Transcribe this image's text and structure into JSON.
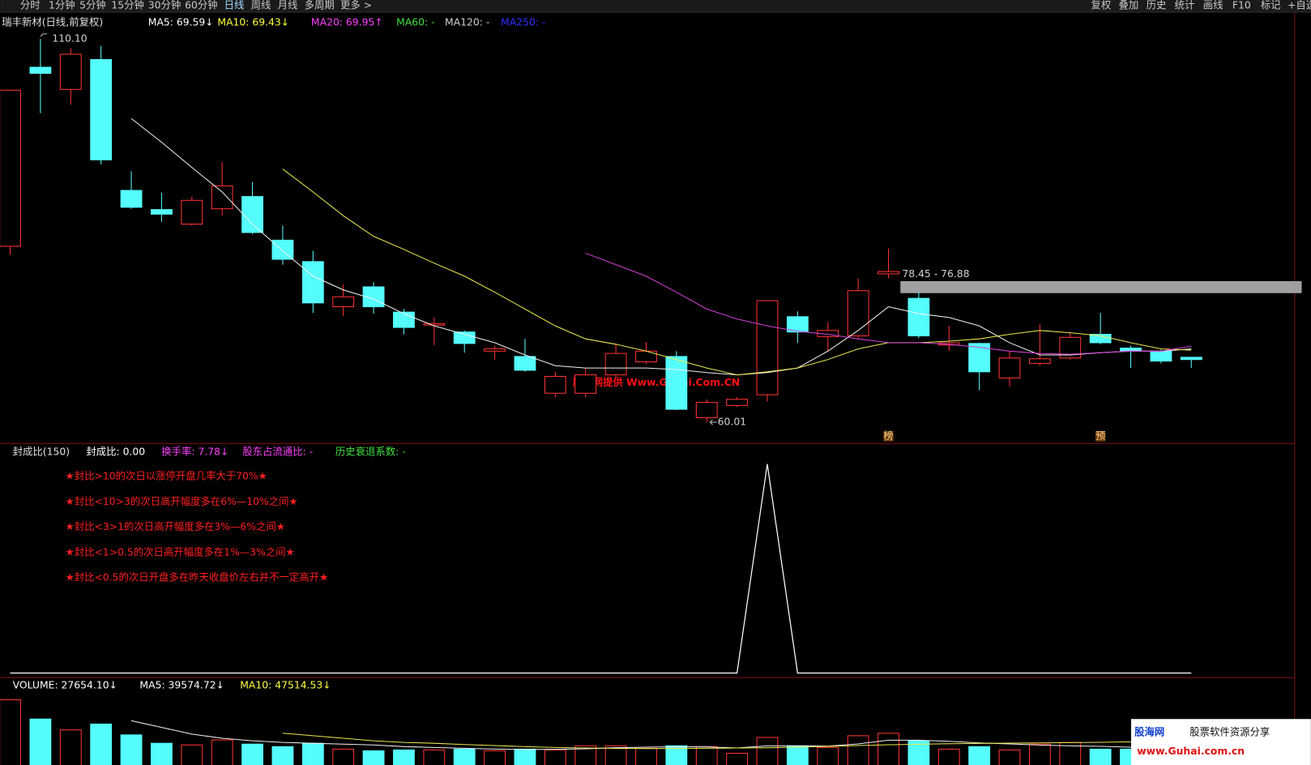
{
  "toolbar": {
    "left": [
      "分时",
      "1分钟",
      "5分钟",
      "15分钟",
      "30分钟",
      "60分钟",
      "日线",
      "周线",
      "月线",
      "多周期",
      "更多 >"
    ],
    "right": [
      "复权",
      "叠加",
      "历史",
      "统计",
      "画线",
      "F10",
      "标记",
      "+自选"
    ]
  },
  "price_panel": {
    "type": "candlestick",
    "title": "瑞丰新材(日线,前复权)",
    "legend": [
      {
        "text": "MA5: 69.59↓",
        "color": "#ffffff"
      },
      {
        "text": "MA10: 69.43↓",
        "color": "#ffff40"
      },
      {
        "text": "MA20: 69.95↑",
        "color": "#ff40ff"
      },
      {
        "text": "MA60: -",
        "color": "#40e040"
      },
      {
        "text": "MA120: -",
        "color": "#d0d0d0"
      },
      {
        "text": "MA250: -",
        "color": "#3030ff"
      }
    ],
    "ylim": [
      57.5,
      113
    ],
    "up_color": "#ff3232",
    "down_color": "#54fcfc",
    "open": [
      83.0,
      106.4,
      103.5,
      107.4,
      90.3,
      87.8,
      85.9,
      87.9,
      89.5,
      83.8,
      81.0,
      75.1,
      77.7,
      74.4,
      72.7,
      71.8,
      69.3,
      68.6,
      63.8,
      63.8,
      66.2,
      67.9,
      68.6,
      60.6,
      62.2,
      63.6,
      73.8,
      71.2,
      71.3,
      79.4,
      76.2,
      70.1,
      70.3,
      65.8,
      67.7,
      68.4,
      71.5,
      69.7,
      69.3,
      68.5
    ],
    "high": [
      103.4,
      110.1,
      108.9,
      109.2,
      92.8,
      90.0,
      89.5,
      94.0,
      91.4,
      85.7,
      82.4,
      78.0,
      78.3,
      74.8,
      73.7,
      72.0,
      70.0,
      70.9,
      66.6,
      67.1,
      70.2,
      70.5,
      69.3,
      63.0,
      63.3,
      75.9,
      74.5,
      73.1,
      78.8,
      82.7,
      77.0,
      72.6,
      70.4,
      69.3,
      72.8,
      71.7,
      74.3,
      70.0,
      69.5,
      68.5
    ],
    "low": [
      81.9,
      100.4,
      101.5,
      93.7,
      87.9,
      86.2,
      85.7,
      87.0,
      84.6,
      80.6,
      74.3,
      73.9,
      74.2,
      71.5,
      70.1,
      69.1,
      68.2,
      66.6,
      63.3,
      63.3,
      65.8,
      67.6,
      61.6,
      60.01,
      62.0,
      62.7,
      70.4,
      69.3,
      71.0,
      78.8,
      71.0,
      69.3,
      64.2,
      64.7,
      67.4,
      68.2,
      70.2,
      67.1,
      67.7,
      67.1
    ],
    "close": [
      103.4,
      105.6,
      108.1,
      94.3,
      88.1,
      87.2,
      89.0,
      90.9,
      84.8,
      81.3,
      75.6,
      76.4,
      75.1,
      72.4,
      72.9,
      70.3,
      69.6,
      66.8,
      66.0,
      66.2,
      69.0,
      69.3,
      61.7,
      62.6,
      63.0,
      75.9,
      71.8,
      72.0,
      77.2,
      79.7,
      71.3,
      70.4,
      66.6,
      68.4,
      68.3,
      71.1,
      70.4,
      69.3,
      68.0,
      68.2
    ],
    "series": [
      {
        "name": "MA5",
        "color": "#f0f0f0",
        "values": [
          null,
          null,
          null,
          null,
          99.7,
          96.6,
          93.3,
          90.1,
          85.9,
          82.4,
          79.1,
          77.3,
          76.1,
          74.2,
          72.6,
          71.5,
          70.4,
          68.8,
          67.4,
          67.1,
          67.1,
          67.1,
          66.9,
          66.5,
          66.2,
          66.5,
          67.1,
          69.3,
          72.0,
          75.1,
          74.2,
          73.7,
          72.6,
          70.4,
          68.8,
          68.8,
          69.1,
          69.3,
          69.3,
          69.59
        ]
      },
      {
        "name": "MA10",
        "color": "#e8e850",
        "values": [
          null,
          null,
          null,
          null,
          null,
          null,
          null,
          null,
          null,
          93.1,
          90.1,
          87.0,
          84.3,
          82.6,
          80.8,
          79.1,
          77.0,
          74.8,
          72.6,
          70.9,
          70.2,
          69.3,
          68.2,
          67.1,
          66.2,
          66.6,
          67.1,
          68.2,
          69.6,
          70.4,
          70.4,
          70.6,
          70.9,
          71.5,
          72.0,
          71.7,
          71.3,
          70.4,
          69.6,
          69.43
        ]
      },
      {
        "name": "MA20",
        "color": "#d040d0",
        "values": [
          null,
          null,
          null,
          null,
          null,
          null,
          null,
          null,
          null,
          null,
          null,
          null,
          null,
          null,
          null,
          null,
          null,
          null,
          null,
          82.1,
          80.6,
          79.1,
          77.0,
          74.8,
          73.5,
          72.6,
          71.9,
          71.5,
          70.9,
          70.4,
          70.4,
          70.2,
          69.8,
          69.3,
          69.0,
          68.9,
          69.1,
          69.3,
          69.3,
          69.95
        ]
      }
    ],
    "high_label": "110.10",
    "low_label": "60.01",
    "range_band": {
      "values": [
        76.88,
        78.45
      ],
      "label": "78.45 - 76.88"
    },
    "badges": [
      "榜",
      "预"
    ]
  },
  "indicator_panel": {
    "type": "line",
    "title": "封成比(150)",
    "legend": [
      {
        "text": "封成比: 0.00",
        "color": "#ffffff"
      },
      {
        "text": "换手率: 7.78↓",
        "color": "#ff40ff"
      },
      {
        "text": "股东占流通比: -",
        "color": "#ff40ff"
      },
      {
        "text": "历史衰退系数: -",
        "color": "#40e040"
      }
    ],
    "notes": [
      "★封比>10的次日以涨停开盘几率大于70%★",
      "★封比<10>3的次日高开幅度多在6%—10%之间★",
      "★封比<3>1的次日高开幅度多在3%—6%之间★",
      "★封比<1>0.5的次日高开幅度多在1%—3%之间★",
      "★封比<0.5的次日开盘多在昨天收盘价左右并不一定高开★"
    ],
    "ylim": [
      0,
      10.4
    ],
    "color": "#ffffff",
    "values": [
      0,
      0,
      0,
      0,
      0,
      0,
      0,
      0,
      0,
      0,
      0,
      0,
      0,
      0,
      0,
      0,
      0,
      0,
      0,
      0,
      0,
      0,
      0,
      0,
      0,
      10,
      0,
      0,
      0,
      0,
      0,
      0,
      0,
      0,
      0,
      0,
      0,
      0,
      0,
      0
    ]
  },
  "volume_panel": {
    "type": "bar",
    "legend": [
      {
        "text": "VOLUME: 27654.10↓",
        "color": "#ffffff"
      },
      {
        "text": "MA5: 39574.72↓",
        "color": "#ffffff"
      },
      {
        "text": "MA10: 47514.53↓",
        "color": "#ffff40"
      }
    ],
    "ylim": [
      0,
      142600
    ],
    "values": [
      120900,
      85250,
      65100,
      75950,
      55800,
      40300,
      37200,
      46500,
      38750,
      34100,
      40300,
      29450,
      26350,
      27900,
      27900,
      29450,
      26350,
      29450,
      27900,
      35650,
      35650,
      31000,
      35650,
      34100,
      21700,
      51150,
      35650,
      32550,
      54250,
      58900,
      44950,
      29450,
      34100,
      27900,
      38750,
      41850,
      29450,
      29450,
      31000,
      27654.1
    ],
    "series": [
      {
        "name": "MA5",
        "color": "#f0f0f0",
        "values": [
          null,
          null,
          null,
          null,
          82150,
          69750,
          57350,
          49600,
          44950,
          41850,
          40300,
          38750,
          37200,
          34100,
          32550,
          31000,
          29450,
          28675,
          29000,
          30000,
          32000,
          33000,
          34000,
          33500,
          31500,
          35500,
          35500,
          35000,
          39000,
          46000,
          46000,
          44000,
          41000,
          39000,
          37000,
          35500,
          34500,
          33000,
          32000,
          39574.72
        ]
      },
      {
        "name": "MA10",
        "color": "#e8e850",
        "values": [
          null,
          null,
          null,
          null,
          null,
          null,
          null,
          null,
          null,
          58900,
          54250,
          49600,
          44950,
          41850,
          40300,
          38000,
          36000,
          34000,
          32500,
          31500,
          30800,
          30500,
          30500,
          31000,
          31500,
          32000,
          33000,
          34500,
          36000,
          37500,
          38500,
          39500,
          40000,
          40500,
          41000,
          41500,
          42000,
          43000,
          44500,
          47514.53
        ]
      }
    ]
  },
  "watermark": "股海网提供 Www.Guhai.Com.CN",
  "logo": {
    "brand": "股海网",
    "slogan": "股票软件资源分享",
    "url": "www.Guhai.com.cn"
  }
}
